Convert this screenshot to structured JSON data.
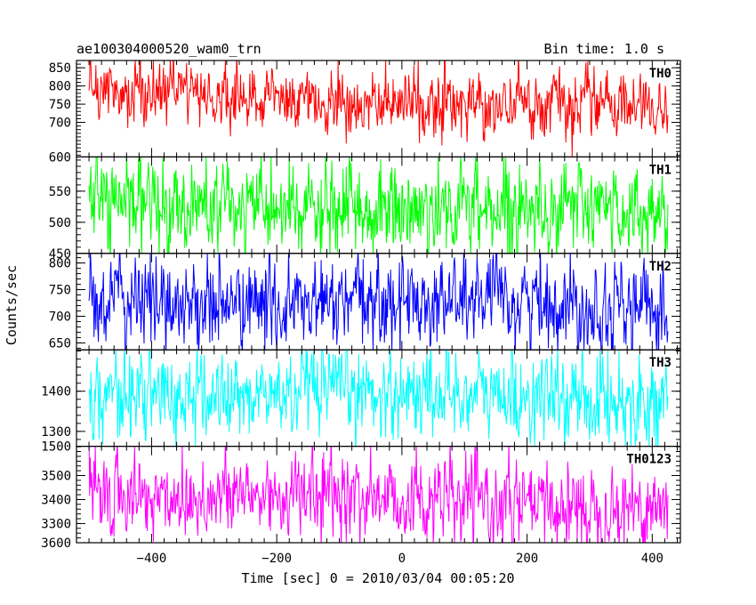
{
  "header": {
    "title": "ae100304000520_wam0_trn",
    "bin_time": "Bin time: 1.0 s"
  },
  "chart_data": {
    "type": "line",
    "title": "ae100304000520_wam0_trn",
    "subtitle": "Bin time: 1.0 s",
    "xlabel": "Time [sec] 0 = 2010/03/04 00:05:20",
    "ylabel": "Counts/sec",
    "xlim": [
      -520,
      445
    ],
    "x_range": [
      -500,
      425
    ],
    "x_step": 1,
    "x_ticks": [
      -400,
      -200,
      0,
      200,
      400
    ],
    "x_tick_labels": [
      "−400",
      "−200",
      "0",
      "200",
      "400"
    ],
    "grid": false,
    "panels": [
      {
        "name": "TH0",
        "color": "#ff0000",
        "ylim": [
          605,
          870
        ],
        "y_ticks": [
          700,
          750,
          800,
          850
        ],
        "y_tick_labels": [
          "700",
          "750",
          "800",
          "850"
        ],
        "edge_label": "600",
        "mean_start": 775,
        "mean_end": 738,
        "noise": 55
      },
      {
        "name": "TH1",
        "color": "#00ff00",
        "ylim": [
          450,
          605
        ],
        "y_ticks": [
          500,
          550
        ],
        "y_tick_labels": [
          "500",
          "550"
        ],
        "edge_label": "450",
        "mean_start": 525,
        "mean_end": 518,
        "noise": 48
      },
      {
        "name": "TH2",
        "color": "#0000ff",
        "ylim": [
          637,
          818
        ],
        "y_ticks": [
          650,
          700,
          750,
          800
        ],
        "y_tick_labels": [
          "650",
          "700",
          "750",
          "800"
        ],
        "edge_label": "",
        "mean_start": 728,
        "mean_end": 722,
        "noise": 55
      },
      {
        "name": "TH3",
        "color": "#00ffff",
        "ylim": [
          1263,
          1503
        ],
        "y_ticks": [
          1300,
          1400
        ],
        "y_tick_labels": [
          "1300",
          "1400"
        ],
        "edge_label": "1500",
        "mean_start": 1395,
        "mean_end": 1385,
        "noise": 70
      },
      {
        "name": "TH0123",
        "color": "#ff00ff",
        "ylim": [
          3220,
          3622
        ],
        "y_ticks": [
          3300,
          3400,
          3500
        ],
        "y_tick_labels": [
          "3300",
          "3400",
          "3500"
        ],
        "edge_label": "3600",
        "mean_start": 3430,
        "mean_end": 3370,
        "noise": 115
      }
    ]
  }
}
